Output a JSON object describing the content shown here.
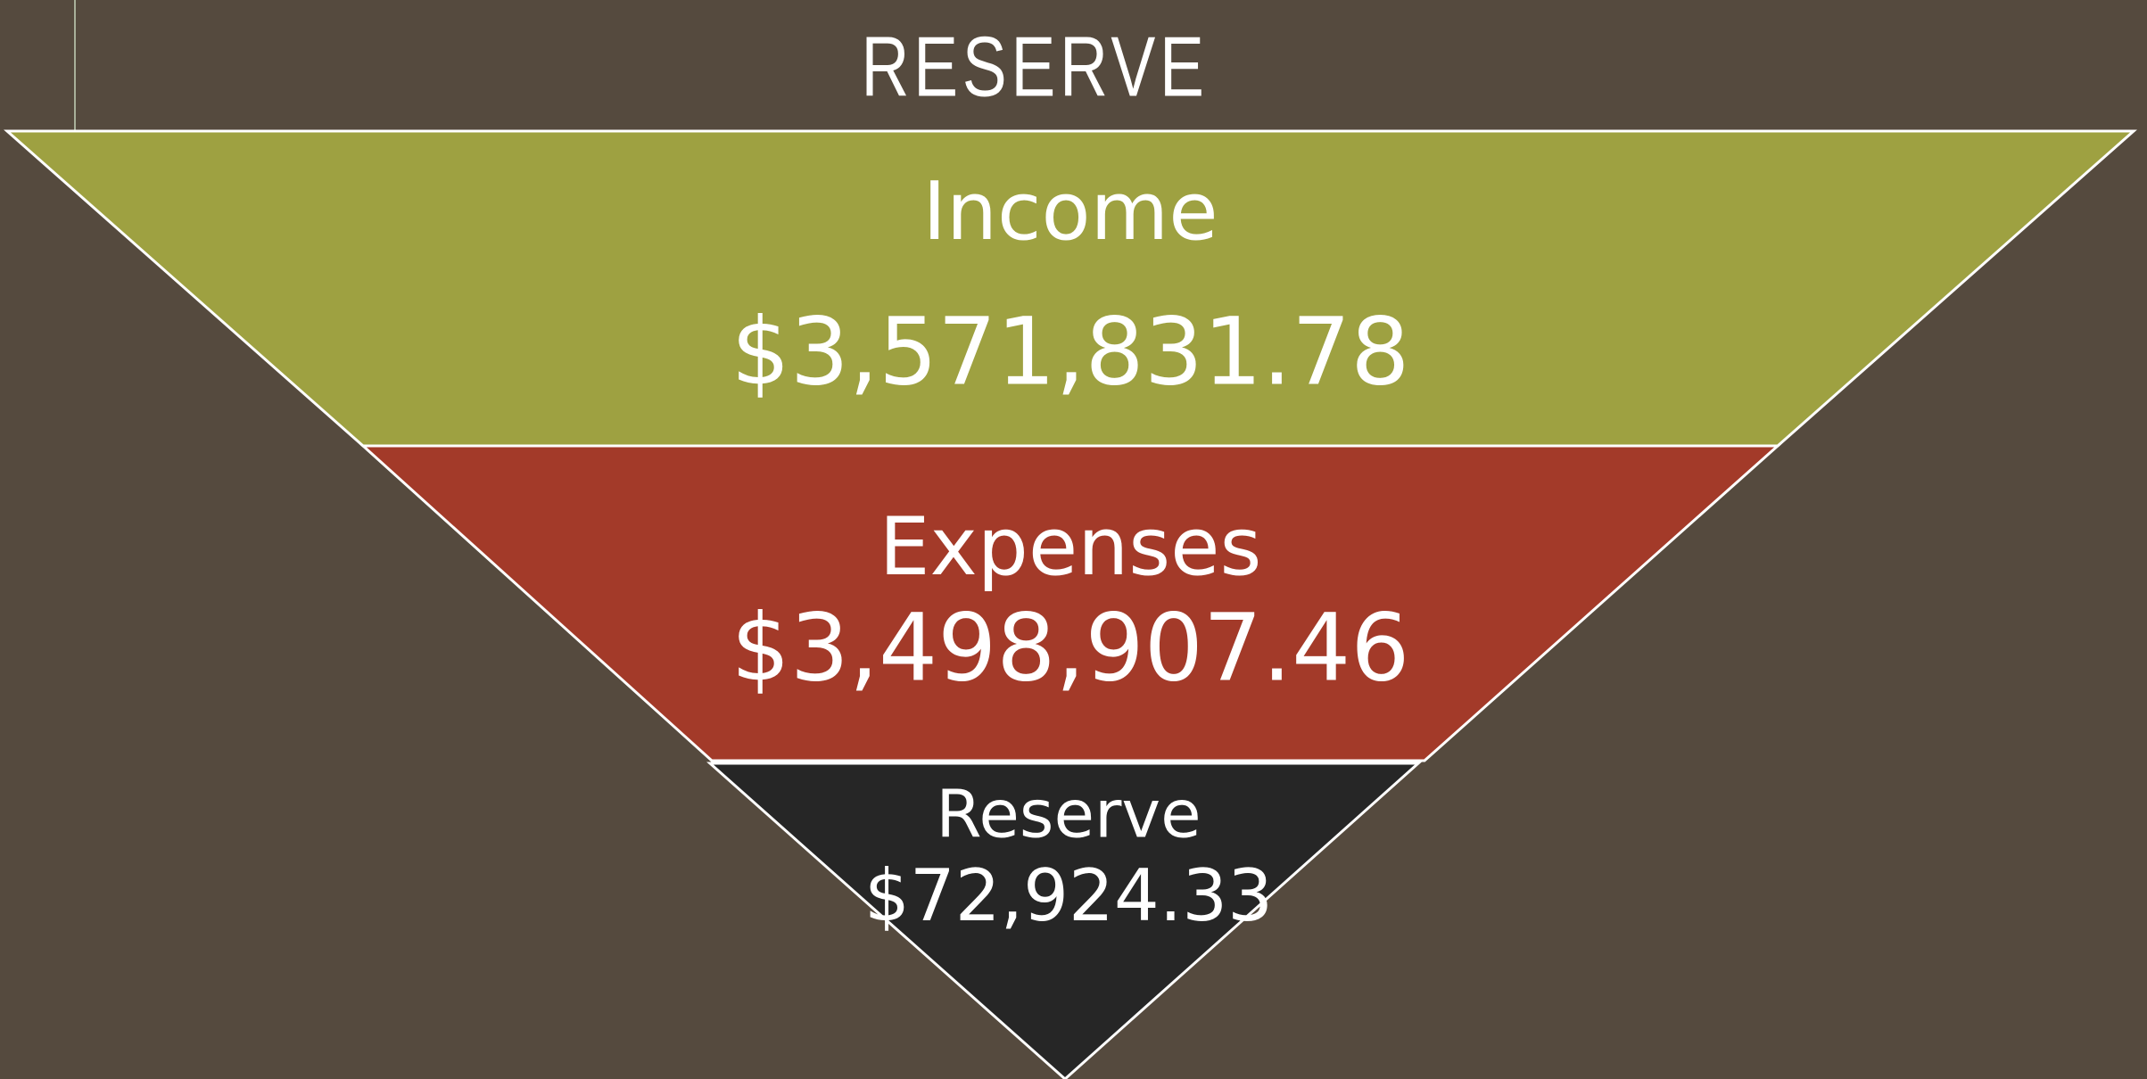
{
  "title": "RESERVE",
  "funnel": [
    {
      "label": "Income",
      "amount": "$3,571,831.78"
    },
    {
      "label": "Expenses",
      "amount": "$3,498,907.46"
    },
    {
      "label": "Reserve",
      "amount": "$72,924.33"
    }
  ]
}
